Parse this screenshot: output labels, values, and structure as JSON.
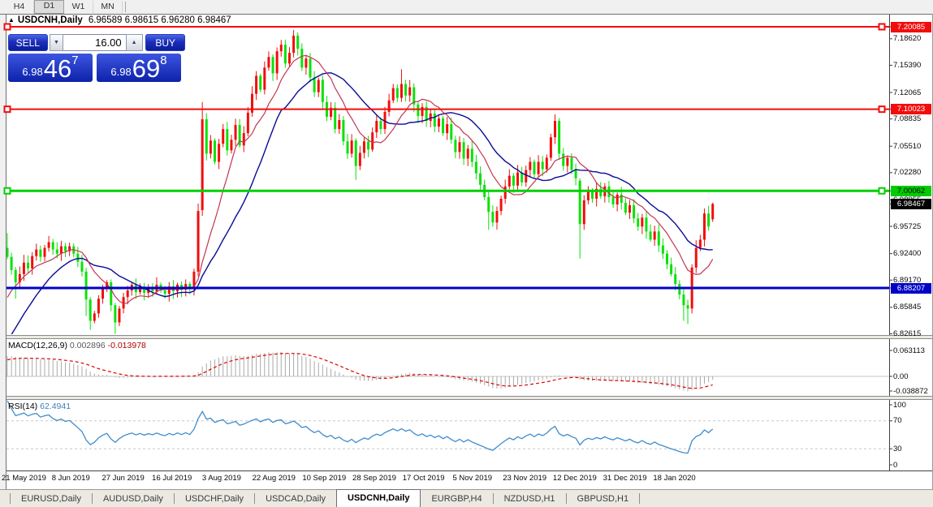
{
  "toolbar": {
    "timeframes": [
      "H4",
      "D1",
      "W1",
      "MN"
    ],
    "active": "D1"
  },
  "chart": {
    "expand_icon": "▲",
    "symbol": "USDCNH,Daily",
    "ohlc_text": "6.96589 6.98615 6.96280 6.98467"
  },
  "one_click": {
    "sell_label": "SELL",
    "buy_label": "BUY",
    "volume": "16.00",
    "spin_down_icon": "▼",
    "spin_up_icon": "▲",
    "sell_price": {
      "small": "6.98",
      "big": "46",
      "sup": "7"
    },
    "buy_price": {
      "small": "6.98",
      "big": "69",
      "sup": "8"
    }
  },
  "price_axis": {
    "ticks": [
      "7.18620",
      "7.15390",
      "7.12065",
      "7.08835",
      "7.05510",
      "7.02280",
      "6.98955",
      "6.95725",
      "6.92400",
      "6.89170",
      "6.85845",
      "6.82615"
    ],
    "badges": [
      {
        "label": "7.20085",
        "price": 7.20085,
        "bg": "#f20d0d",
        "fg": "#ffffff"
      },
      {
        "label": "7.10023",
        "price": 7.10023,
        "bg": "#f20d0d",
        "fg": "#ffffff"
      },
      {
        "label": "7.00062",
        "price": 7.00062,
        "bg": "#00cc00",
        "fg": "#000000"
      },
      {
        "label": "6.98467",
        "price": 6.98467,
        "bg": "#000000",
        "fg": "#ffffff"
      },
      {
        "label": "6.88207",
        "price": 6.88207,
        "bg": "#0000c8",
        "fg": "#ffffff"
      }
    ]
  },
  "macd": {
    "label": "MACD(12,26,9)",
    "value_main": "0.002896",
    "value_signal": "-0.013978",
    "axis": [
      {
        "label": "0.063113",
        "v": 0.063113
      },
      {
        "label": "0.00",
        "v": 0
      },
      {
        "label": "-0.038872",
        "v": -0.038872
      }
    ]
  },
  "rsi": {
    "label": "RSI(14)",
    "value": "62.4941",
    "axis": [
      {
        "label": "100",
        "v": 100
      },
      {
        "label": "70",
        "v": 70
      },
      {
        "label": "30",
        "v": 30
      },
      {
        "label": "0",
        "v": 0
      }
    ],
    "levels": [
      70,
      30
    ]
  },
  "dates": [
    "21 May 2019",
    "8 Jun 2019",
    "27 Jun 2019",
    "16 Jul 2019",
    "3 Aug 2019",
    "22 Aug 2019",
    "10 Sep 2019",
    "28 Sep 2019",
    "17 Oct 2019",
    "5 Nov 2019",
    "23 Nov 2019",
    "12 Dec 2019",
    "31 Dec 2019",
    "18 Jan 2020"
  ],
  "bottom_tabs": {
    "items": [
      "EURUSD,Daily",
      "AUDUSD,Daily",
      "USDCHF,Daily",
      "USDCAD,Daily",
      "USDCNH,Daily",
      "EURGBP,H4",
      "NZDUSD,H1",
      "GBPUSD,H1"
    ],
    "active": "USDCNH,Daily"
  },
  "chart_data": {
    "type": "candlestick",
    "symbol": "USDCNH",
    "timeframe": "Daily",
    "colors": {
      "bull": "#f20d0d",
      "bear": "#0ae20a",
      "ma_fast": "#c13652",
      "ma_slow": "#0a0a96",
      "macd_hist": "#a9a9a9",
      "macd_signal": "#e00000",
      "rsi_line": "#3f8ccc",
      "level_dash": "#c8c8c8"
    },
    "ma_fast_period": 10,
    "ma_slow_period": 20,
    "closes": [
      6.92,
      6.904,
      6.889,
      6.899,
      6.913,
      6.906,
      6.921,
      6.929,
      6.92,
      6.931,
      6.938,
      6.929,
      6.924,
      6.933,
      6.927,
      6.933,
      6.924,
      6.914,
      6.902,
      6.868,
      6.842,
      6.851,
      6.869,
      6.881,
      6.889,
      6.861,
      6.84,
      6.857,
      6.871,
      6.879,
      6.886,
      6.877,
      6.884,
      6.876,
      6.883,
      6.878,
      6.886,
      6.879,
      6.875,
      6.884,
      6.878,
      6.886,
      6.88,
      6.887,
      6.881,
      6.902,
      6.976,
      7.088,
      7.046,
      7.062,
      7.036,
      7.058,
      7.076,
      7.05,
      7.063,
      7.081,
      7.056,
      7.071,
      7.096,
      7.119,
      7.141,
      7.124,
      7.151,
      7.164,
      7.144,
      7.171,
      7.179,
      7.156,
      7.169,
      7.19,
      7.174,
      7.151,
      7.162,
      7.139,
      7.121,
      7.136,
      7.109,
      7.091,
      7.102,
      7.076,
      7.087,
      7.061,
      7.046,
      7.062,
      7.031,
      7.047,
      7.061,
      7.051,
      7.072,
      7.086,
      7.076,
      7.097,
      7.111,
      7.126,
      7.114,
      7.131,
      7.117,
      7.127,
      7.106,
      7.092,
      7.103,
      7.086,
      7.095,
      7.079,
      7.089,
      7.071,
      7.082,
      7.063,
      7.048,
      7.06,
      7.04,
      7.052,
      7.036,
      7.022,
      7.008,
      6.993,
      6.975,
      6.962,
      6.976,
      6.991,
      7.006,
      7.019,
      7.007,
      7.023,
      7.011,
      7.026,
      7.036,
      7.021,
      7.036,
      7.027,
      7.041,
      7.066,
      7.086,
      7.046,
      7.031,
      7.041,
      7.026,
      7.016,
      6.96,
      6.989,
      7.001,
      6.991,
      7.003,
      6.994,
      7.006,
      6.993,
      6.984,
      6.996,
      6.986,
      6.974,
      6.983,
      6.967,
      6.957,
      6.968,
      6.951,
      6.941,
      6.951,
      6.934,
      6.924,
      6.911,
      6.899,
      6.887,
      6.874,
      6.861,
      6.857,
      6.907,
      6.931,
      6.941,
      6.973,
      6.957,
      6.98467
    ],
    "overrides": {
      "0": {
        "h": 6.949
      },
      "2": {
        "l": 6.869
      },
      "19": {
        "l": 6.848
      },
      "20": {
        "l": 6.831
      },
      "26": {
        "l": 6.826
      },
      "46": {
        "h": 6.985
      },
      "47": {
        "o": 6.977,
        "h": 7.109,
        "l": 6.97
      },
      "69": {
        "h": 7.197
      },
      "84": {
        "l": 7.014
      },
      "95": {
        "h": 7.149
      },
      "116": {
        "l": 6.953
      },
      "132": {
        "h": 7.094
      },
      "138": {
        "o": 7.013,
        "h": 7.016,
        "l": 6.918
      },
      "163": {
        "l": 6.842
      },
      "164": {
        "l": 6.838
      },
      "165": {
        "l": 6.851,
        "h": 6.911
      },
      "168": {
        "h": 6.979
      },
      "170": {
        "o": 6.96589,
        "h": 6.98615,
        "l": 6.9628
      }
    },
    "history_warmup": {
      "count": 40,
      "base": 6.92,
      "slope": 0.011,
      "floor": 6.7
    },
    "hlines": [
      {
        "price": 7.20085,
        "color": "#f20d0d",
        "width": 2,
        "handles": [
          "left",
          "right"
        ]
      },
      {
        "price": 7.10023,
        "color": "#f20d0d",
        "width": 2,
        "handles": [
          "left",
          "right"
        ]
      },
      {
        "price": 7.00062,
        "color": "#00d000",
        "width": 3,
        "handles": [
          "left",
          "right"
        ]
      },
      {
        "price": 6.88207,
        "color": "#0000c8",
        "width": 3,
        "handles": []
      }
    ],
    "macd_params": {
      "fast": 12,
      "slow": 26,
      "signal": 9
    },
    "rsi_period": 14
  }
}
